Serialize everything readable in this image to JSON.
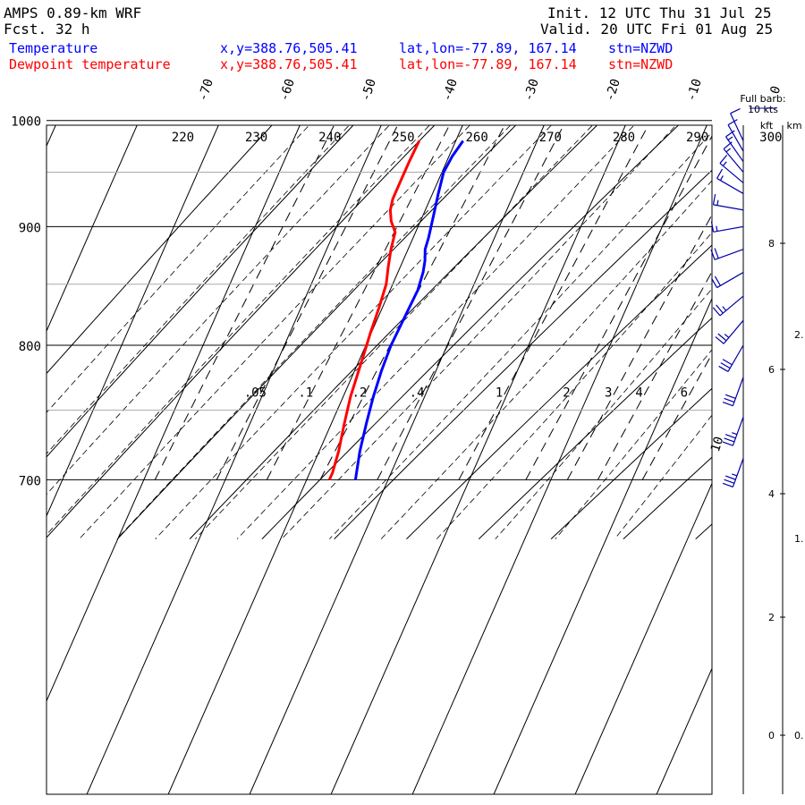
{
  "header": {
    "model": "AMPS 0.89-km WRF",
    "fcst_label": "Fcst.",
    "fcst_value": "32 h",
    "init": "Init. 12 UTC Thu 31 Jul 25",
    "valid": "Valid. 20 UTC Fri 01 Aug 25"
  },
  "legend": [
    {
      "name": "Temperature",
      "xy": "x,y=388.76,505.41",
      "latlon": "lat,lon=-77.89, 167.14",
      "stn": "stn=NZWD",
      "color": "#0000ff"
    },
    {
      "name": "Dewpoint temperature",
      "xy": "x,y=388.76,505.41",
      "latlon": "lat,lon=-77.89, 167.14",
      "stn": "stn=NZWD",
      "color": "#ff0000"
    }
  ],
  "barb_legend": {
    "line1": "Full barb:",
    "line2": "10 kts"
  },
  "height_axis": {
    "kft_label": "kft",
    "km_label": "km",
    "kft_ticks": [
      "8",
      "6",
      "4",
      "2",
      "0"
    ],
    "km_ticks": [
      "2.",
      "1.",
      "0."
    ]
  },
  "chart_data": {
    "type": "line",
    "title": "",
    "xlabel": "",
    "ylabel": "",
    "y_axis": {
      "quantity": "pressure (hPa)",
      "scale": "log",
      "range": [
        1040,
        700
      ],
      "ticks": [
        700,
        800,
        900,
        1000
      ]
    },
    "temperature_ticks": [
      -70,
      -60,
      -50,
      -40,
      -30,
      -20,
      -10,
      0
    ],
    "isotherm_side_label": "10",
    "dry_adiabat_labels": [
      220,
      230,
      240,
      250,
      260,
      270,
      280,
      290,
      300
    ],
    "mixing_ratio_labels": [
      ".05",
      ".1",
      ".2",
      ".4",
      "1",
      "2",
      "3",
      "4",
      "6"
    ],
    "series": [
      {
        "name": "Temperature",
        "color": "#0000ff",
        "points": [
          [
            980,
            -39.1
          ],
          [
            965,
            -39.6
          ],
          [
            950,
            -39.8
          ],
          [
            930,
            -39.3
          ],
          [
            910,
            -38.7
          ],
          [
            890,
            -38.1
          ],
          [
            880,
            -37.9
          ],
          [
            870,
            -37.3
          ],
          [
            860,
            -36.9
          ],
          [
            845,
            -36.6
          ],
          [
            830,
            -36.7
          ],
          [
            815,
            -36.8
          ],
          [
            800,
            -36.9
          ],
          [
            780,
            -36.7
          ],
          [
            760,
            -36.3
          ],
          [
            740,
            -35.7
          ],
          [
            720,
            -35.0
          ],
          [
            700,
            -34.0
          ]
        ]
      },
      {
        "name": "Dewpoint temperature",
        "color": "#ff0000",
        "points": [
          [
            980,
            -44.5
          ],
          [
            960,
            -44.6
          ],
          [
            940,
            -44.6
          ],
          [
            925,
            -44.6
          ],
          [
            915,
            -44.3
          ],
          [
            905,
            -43.6
          ],
          [
            895,
            -42.5
          ],
          [
            880,
            -42.1
          ],
          [
            865,
            -41.5
          ],
          [
            850,
            -40.8
          ],
          [
            830,
            -40.4
          ],
          [
            810,
            -40.1
          ],
          [
            800,
            -39.9
          ],
          [
            780,
            -39.5
          ],
          [
            760,
            -39.1
          ],
          [
            740,
            -38.4
          ],
          [
            720,
            -37.6
          ],
          [
            705,
            -37.2
          ],
          [
            700,
            -37.2
          ]
        ]
      }
    ],
    "wind_barbs": [
      {
        "p": 715,
        "dir": 200,
        "spd": 35
      },
      {
        "p": 745,
        "dir": 200,
        "spd": 35
      },
      {
        "p": 775,
        "dir": 200,
        "spd": 30
      },
      {
        "p": 800,
        "dir": 210,
        "spd": 30
      },
      {
        "p": 820,
        "dir": 220,
        "spd": 25
      },
      {
        "p": 840,
        "dir": 230,
        "spd": 25
      },
      {
        "p": 860,
        "dir": 240,
        "spd": 20
      },
      {
        "p": 880,
        "dir": 250,
        "spd": 20
      },
      {
        "p": 900,
        "dir": 260,
        "spd": 15
      },
      {
        "p": 915,
        "dir": 280,
        "spd": 15
      },
      {
        "p": 930,
        "dir": 300,
        "spd": 15
      },
      {
        "p": 940,
        "dir": 310,
        "spd": 15
      },
      {
        "p": 950,
        "dir": 320,
        "spd": 15
      },
      {
        "p": 960,
        "dir": 325,
        "spd": 15
      },
      {
        "p": 970,
        "dir": 330,
        "spd": 10
      },
      {
        "p": 980,
        "dir": 335,
        "spd": 10
      }
    ]
  }
}
